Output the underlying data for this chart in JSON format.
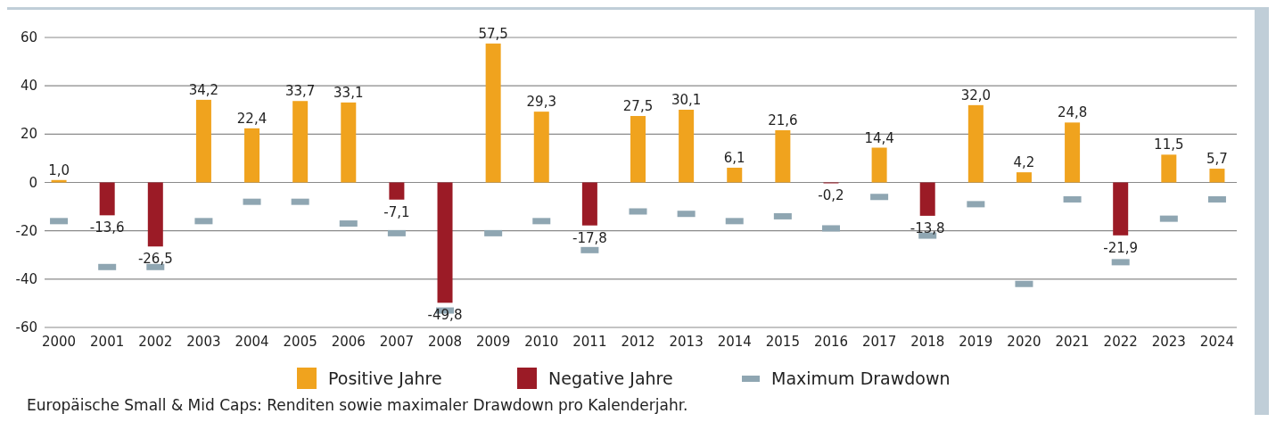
{
  "chart_data": {
    "type": "bar",
    "categories": [
      "2000",
      "2001",
      "2002",
      "2003",
      "2004",
      "2005",
      "2006",
      "2007",
      "2008",
      "2009",
      "2010",
      "2011",
      "2012",
      "2013",
      "2014",
      "2015",
      "2016",
      "2017",
      "2018",
      "2019",
      "2020",
      "2021",
      "2022",
      "2023",
      "2024"
    ],
    "series": [
      {
        "name": "Positive Jahre",
        "color": "#f0a31e",
        "values": [
          1.0,
          null,
          null,
          34.2,
          22.4,
          33.7,
          33.1,
          null,
          null,
          57.5,
          29.3,
          null,
          27.5,
          30.1,
          6.1,
          21.6,
          null,
          14.4,
          null,
          32.0,
          4.2,
          24.8,
          null,
          11.5,
          5.7
        ],
        "value_labels": [
          "1,0",
          null,
          null,
          "34,2",
          "22,4",
          "33,7",
          "33,1",
          null,
          null,
          "57,5",
          "29,3",
          null,
          "27,5",
          "30,1",
          "6,1",
          "21,6",
          null,
          "14,4",
          null,
          "32,0",
          "4,2",
          "24,8",
          null,
          "11,5",
          "5,7"
        ]
      },
      {
        "name": "Negative Jahre",
        "color": "#9b1b26",
        "values": [
          null,
          -13.6,
          -26.5,
          null,
          null,
          null,
          null,
          -7.1,
          -49.8,
          null,
          null,
          -17.8,
          null,
          null,
          null,
          null,
          -0.2,
          null,
          -13.8,
          null,
          null,
          null,
          -21.9,
          null,
          null
        ],
        "value_labels": [
          null,
          "-13,6",
          "-26,5",
          null,
          null,
          null,
          null,
          "-7,1",
          "-49,8",
          null,
          null,
          "-17,8",
          null,
          null,
          null,
          null,
          "-0,2",
          null,
          "-13,8",
          null,
          null,
          null,
          "-21,9",
          null,
          null
        ]
      },
      {
        "name": "Maximum Drawdown",
        "type": "scatter",
        "color": "#8fa6b2",
        "values": [
          -16,
          -35,
          -35,
          -16,
          -8,
          -8,
          -17,
          -21,
          -53,
          -21,
          -16,
          -28,
          -12,
          -13,
          -16,
          -14,
          -19,
          -6,
          -22,
          -9,
          -42,
          -7,
          -33,
          -15,
          -7
        ]
      }
    ],
    "ylim": [
      -60,
      60
    ],
    "yticks": [
      -60,
      -40,
      -20,
      0,
      20,
      40,
      60
    ],
    "grid": "y",
    "legend": "bottom",
    "annotations": [
      "Europäische Small & Mid Caps: Renditen sowie maximaler Drawdown pro Kalenderjahr."
    ]
  }
}
